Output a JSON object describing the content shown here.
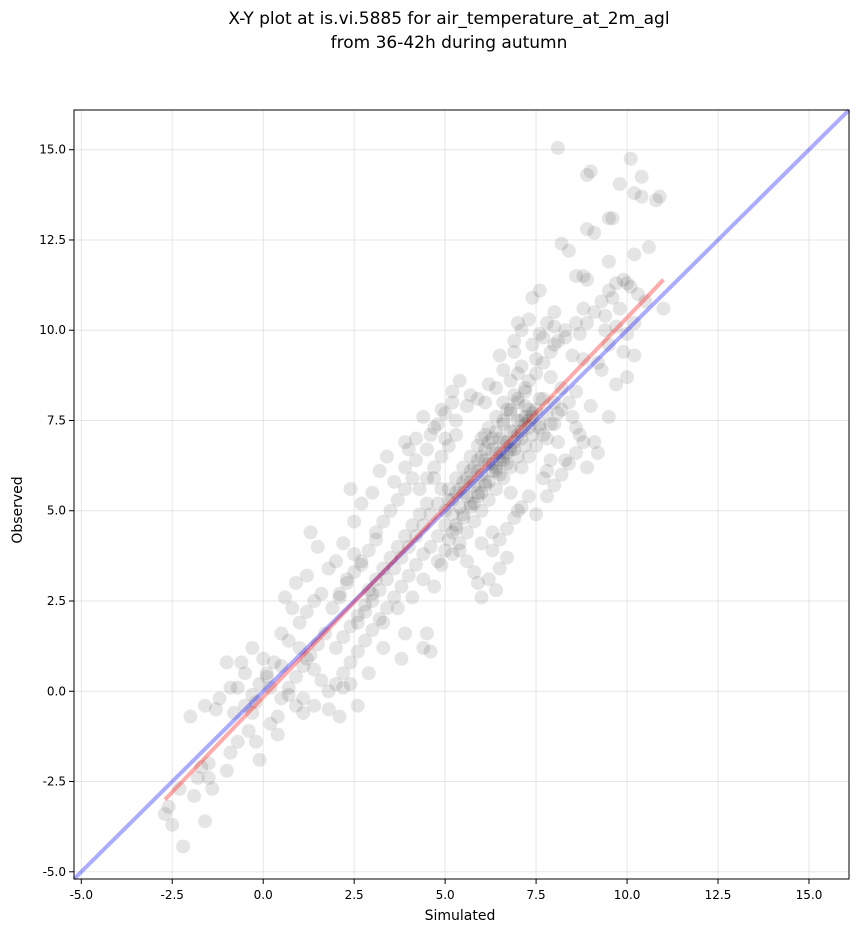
{
  "chart_data": {
    "type": "scatter",
    "title_line1": "X-Y plot at is.vi.5885 for air_temperature_at_2m_agl",
    "title_line2": "from 36-42h during autumn",
    "xlabel": "Simulated",
    "ylabel": "Observed",
    "xlim": [
      -5.2,
      16.1
    ],
    "ylim": [
      -5.2,
      16.1
    ],
    "xticks": [
      -5.0,
      -2.5,
      0.0,
      2.5,
      5.0,
      7.5,
      10.0,
      12.5,
      15.0
    ],
    "xtick_labels": [
      "-5.0",
      "-2.5",
      "0.0",
      "2.5",
      "5.0",
      "7.5",
      "10.0",
      "12.5",
      "15.0"
    ],
    "yticks": [
      -5.0,
      -2.5,
      0.0,
      2.5,
      5.0,
      7.5,
      10.0,
      12.5,
      15.0
    ],
    "ytick_labels": [
      "-5.0",
      "-2.5",
      "0.0",
      "2.5",
      "5.0",
      "7.5",
      "10.0",
      "12.5",
      "15.0"
    ],
    "grid": true,
    "point_color": "#000000",
    "point_alpha": 0.1,
    "one_to_one_line": {
      "x": [
        -5.2,
        16.1
      ],
      "y": [
        -5.2,
        16.1
      ],
      "color": "#0000ff",
      "alpha": 0.33
    },
    "fit_line": {
      "x": [
        -2.7,
        11.0
      ],
      "y": [
        -3.0,
        11.4
      ],
      "color": "#ff0000",
      "alpha": 0.33
    },
    "points": [
      [
        8.1,
        15.05
      ],
      [
        9.0,
        14.4
      ],
      [
        8.9,
        14.3
      ],
      [
        10.1,
        14.75
      ],
      [
        9.8,
        14.05
      ],
      [
        10.4,
        14.25
      ],
      [
        10.2,
        13.8
      ],
      [
        10.9,
        13.7
      ],
      [
        10.8,
        13.6
      ],
      [
        10.4,
        13.7
      ],
      [
        9.6,
        13.1
      ],
      [
        9.5,
        13.1
      ],
      [
        8.9,
        12.8
      ],
      [
        9.1,
        12.7
      ],
      [
        8.2,
        12.4
      ],
      [
        8.4,
        12.2
      ],
      [
        10.2,
        12.1
      ],
      [
        10.6,
        12.3
      ],
      [
        9.5,
        11.9
      ],
      [
        8.6,
        11.5
      ],
      [
        8.9,
        11.4
      ],
      [
        9.9,
        11.4
      ],
      [
        10.1,
        11.2
      ],
      [
        8.8,
        11.5
      ],
      [
        11.0,
        10.6
      ],
      [
        9.4,
        10.4
      ],
      [
        8.8,
        10.6
      ],
      [
        8.0,
        10.5
      ],
      [
        7.4,
        10.9
      ],
      [
        7.6,
        11.1
      ],
      [
        8.6,
        10.2
      ],
      [
        7.3,
        10.3
      ],
      [
        9.7,
        10.1
      ],
      [
        10.0,
        9.9
      ],
      [
        10.2,
        10.2
      ],
      [
        8.3,
        9.8
      ],
      [
        7.0,
        10.2
      ],
      [
        9.5,
        9.6
      ],
      [
        9.9,
        9.4
      ],
      [
        10.2,
        9.3
      ],
      [
        9.2,
        9.1
      ],
      [
        10.0,
        8.7
      ],
      [
        9.7,
        8.5
      ],
      [
        6.5,
        9.3
      ],
      [
        6.4,
        8.4
      ],
      [
        5.4,
        8.6
      ],
      [
        5.2,
        8.3
      ],
      [
        4.9,
        7.8
      ],
      [
        4.7,
        7.3
      ],
      [
        4.4,
        7.6
      ],
      [
        3.9,
        6.9
      ],
      [
        5.7,
        8.2
      ],
      [
        6.1,
        8.0
      ],
      [
        8.8,
        9.2
      ],
      [
        9.3,
        8.9
      ],
      [
        9.0,
        7.9
      ],
      [
        9.5,
        7.6
      ],
      [
        8.6,
        7.3
      ],
      [
        9.1,
        6.9
      ],
      [
        9.2,
        6.6
      ],
      [
        8.9,
        6.2
      ],
      [
        8.7,
        7.1
      ],
      [
        8.3,
        6.4
      ],
      [
        7.9,
        6.4
      ],
      [
        7.7,
        5.9
      ],
      [
        7.8,
        5.4
      ],
      [
        7.5,
        4.9
      ],
      [
        7.0,
        5.0
      ],
      [
        6.8,
        5.5
      ],
      [
        6.3,
        4.4
      ],
      [
        6.0,
        4.1
      ],
      [
        6.5,
        3.4
      ],
      [
        6.2,
        3.1
      ],
      [
        6.4,
        2.8
      ],
      [
        6.0,
        2.6
      ],
      [
        5.9,
        3.0
      ],
      [
        6.7,
        3.7
      ],
      [
        4.9,
        3.5
      ],
      [
        4.4,
        3.1
      ],
      [
        4.1,
        2.6
      ],
      [
        3.7,
        2.3
      ],
      [
        4.7,
        2.9
      ],
      [
        3.3,
        1.9
      ],
      [
        3.9,
        1.6
      ],
      [
        4.5,
        1.6
      ],
      [
        4.6,
        1.1
      ],
      [
        4.4,
        1.2
      ],
      [
        3.8,
        0.9
      ],
      [
        3.3,
        1.2
      ],
      [
        2.9,
        0.5
      ],
      [
        2.4,
        0.2
      ],
      [
        2.2,
        0.1
      ],
      [
        2.6,
        -0.4
      ],
      [
        2.1,
        -0.7
      ],
      [
        1.8,
        -0.5
      ],
      [
        1.4,
        -0.4
      ],
      [
        1.1,
        -0.6
      ],
      [
        1.1,
        -0.2
      ],
      [
        0.7,
        -0.1
      ],
      [
        0.9,
        -0.4
      ],
      [
        0.4,
        -0.7
      ],
      [
        0.2,
        0.1
      ],
      [
        -0.3,
        -0.6
      ],
      [
        -0.4,
        -1.1
      ],
      [
        -0.7,
        -1.4
      ],
      [
        -0.9,
        -1.7
      ],
      [
        -0.2,
        -1.4
      ],
      [
        -0.1,
        -1.9
      ],
      [
        -1.0,
        -2.2
      ],
      [
        -1.5,
        -2.0
      ],
      [
        -1.5,
        -2.4
      ],
      [
        -1.7,
        -2.1
      ],
      [
        -1.8,
        -2.4
      ],
      [
        -1.9,
        -2.9
      ],
      [
        -2.3,
        -2.7
      ],
      [
        -2.6,
        -3.2
      ],
      [
        -2.7,
        -3.4
      ],
      [
        -2.5,
        -3.7
      ],
      [
        -2.2,
        -4.3
      ],
      [
        -1.6,
        -3.6
      ],
      [
        -1.4,
        -2.7
      ],
      [
        -2.0,
        -0.7
      ],
      [
        -1.6,
        -0.4
      ],
      [
        -1.3,
        -0.5
      ],
      [
        -0.8,
        -0.6
      ],
      [
        -1.0,
        0.8
      ],
      [
        -0.7,
        0.1
      ],
      [
        -0.5,
        0.5
      ],
      [
        -0.3,
        1.2
      ],
      [
        0.0,
        0.9
      ],
      [
        0.1,
        0.4
      ],
      [
        0.5,
        0.7
      ],
      [
        0.5,
        1.6
      ],
      [
        0.7,
        1.4
      ],
      [
        0.8,
        2.3
      ],
      [
        0.6,
        2.6
      ],
      [
        0.9,
        3.0
      ],
      [
        1.2,
        3.2
      ],
      [
        1.4,
        2.5
      ],
      [
        1.0,
        1.9
      ],
      [
        1.2,
        2.2
      ],
      [
        1.6,
        2.7
      ],
      [
        1.8,
        3.4
      ],
      [
        1.3,
        4.4
      ],
      [
        1.5,
        4.0
      ],
      [
        2.0,
        3.6
      ],
      [
        2.2,
        4.1
      ],
      [
        2.5,
        4.7
      ],
      [
        2.7,
        5.2
      ],
      [
        2.4,
        5.6
      ],
      [
        3.0,
        5.5
      ],
      [
        3.2,
        6.1
      ],
      [
        3.4,
        6.5
      ],
      [
        3.6,
        5.8
      ],
      [
        3.9,
        6.2
      ],
      [
        4.2,
        6.4
      ],
      [
        4.5,
        6.7
      ],
      [
        5.0,
        7.0
      ],
      [
        5.3,
        7.5
      ],
      [
        5.6,
        7.9
      ],
      [
        5.9,
        8.1
      ],
      [
        6.2,
        8.5
      ],
      [
        6.6,
        8.9
      ],
      [
        6.9,
        9.4
      ],
      [
        7.1,
        9.0
      ],
      [
        7.3,
        8.6
      ],
      [
        7.5,
        9.2
      ],
      [
        7.7,
        9.8
      ],
      [
        8.0,
        9.6
      ],
      [
        7.9,
        8.7
      ],
      [
        8.2,
        8.4
      ],
      [
        7.6,
        8.1
      ],
      [
        7.2,
        7.9
      ],
      [
        7.0,
        7.5
      ],
      [
        6.8,
        7.2
      ],
      [
        6.6,
        6.9
      ],
      [
        6.4,
        6.6
      ],
      [
        6.2,
        6.3
      ],
      [
        6.0,
        6.0
      ],
      [
        5.8,
        5.7
      ],
      [
        5.6,
        5.4
      ],
      [
        5.4,
        5.1
      ],
      [
        5.2,
        4.9
      ],
      [
        5.0,
        4.6
      ],
      [
        4.8,
        4.3
      ],
      [
        4.6,
        4.0
      ],
      [
        4.4,
        3.8
      ],
      [
        4.2,
        3.5
      ],
      [
        4.0,
        3.2
      ],
      [
        3.8,
        2.9
      ],
      [
        3.6,
        2.6
      ],
      [
        3.4,
        2.3
      ],
      [
        3.2,
        2.0
      ],
      [
        3.0,
        1.7
      ],
      [
        2.8,
        1.4
      ],
      [
        2.6,
        1.1
      ],
      [
        2.4,
        0.8
      ],
      [
        2.2,
        0.5
      ],
      [
        2.0,
        0.2
      ],
      [
        1.8,
        0.0
      ],
      [
        1.6,
        0.3
      ],
      [
        1.4,
        0.6
      ],
      [
        1.2,
        0.9
      ],
      [
        1.0,
        1.2
      ],
      [
        6.7,
        7.8
      ],
      [
        6.9,
        8.2
      ],
      [
        7.2,
        8.4
      ],
      [
        7.4,
        7.6
      ],
      [
        7.6,
        7.3
      ],
      [
        7.8,
        7.0
      ],
      [
        8.0,
        7.4
      ],
      [
        8.2,
        7.8
      ],
      [
        8.4,
        8.0
      ],
      [
        8.6,
        8.3
      ],
      [
        8.5,
        7.6
      ],
      [
        8.1,
        6.9
      ],
      [
        6.5,
        6.4
      ],
      [
        6.3,
        6.1
      ],
      [
        6.1,
        5.8
      ],
      [
        5.9,
        5.5
      ],
      [
        5.7,
        5.2
      ],
      [
        5.5,
        4.9
      ],
      [
        5.3,
        4.6
      ],
      [
        5.1,
        5.3
      ],
      [
        4.9,
        5.6
      ],
      [
        4.7,
        5.9
      ],
      [
        4.5,
        5.2
      ],
      [
        4.3,
        4.9
      ],
      [
        4.1,
        4.6
      ],
      [
        3.9,
        4.3
      ],
      [
        3.7,
        4.0
      ],
      [
        3.5,
        3.7
      ],
      [
        3.3,
        3.4
      ],
      [
        3.1,
        3.1
      ],
      [
        2.9,
        2.8
      ],
      [
        2.7,
        3.5
      ],
      [
        2.5,
        3.8
      ],
      [
        2.3,
        3.1
      ],
      [
        2.1,
        2.6
      ],
      [
        1.9,
        2.3
      ],
      [
        6.9,
        6.7
      ],
      [
        7.1,
        7.0
      ],
      [
        7.3,
        7.3
      ],
      [
        6.8,
        6.2
      ],
      [
        6.6,
        5.9
      ],
      [
        6.4,
        5.6
      ],
      [
        6.2,
        5.3
      ],
      [
        6.0,
        5.0
      ],
      [
        5.8,
        4.7
      ],
      [
        5.6,
        4.4
      ],
      [
        5.4,
        4.1
      ],
      [
        5.2,
        3.8
      ],
      [
        7.0,
        6.5
      ],
      [
        7.2,
        6.8
      ],
      [
        7.4,
        7.1
      ],
      [
        7.6,
        7.4
      ],
      [
        7.8,
        7.7
      ],
      [
        8.0,
        8.0
      ],
      [
        6.3,
        7.0
      ],
      [
        6.1,
        6.7
      ],
      [
        5.9,
        6.4
      ],
      [
        5.7,
        6.1
      ],
      [
        5.5,
        5.8
      ],
      [
        5.3,
        5.5
      ],
      [
        6.6,
        7.4
      ],
      [
        6.8,
        7.7
      ],
      [
        7.0,
        8.0
      ],
      [
        7.2,
        8.3
      ],
      [
        6.5,
        6.0
      ],
      [
        6.7,
        6.3
      ],
      [
        5.0,
        5.0
      ],
      [
        5.2,
        5.3
      ],
      [
        5.4,
        5.6
      ],
      [
        5.6,
        5.9
      ],
      [
        5.8,
        6.2
      ],
      [
        6.0,
        6.5
      ],
      [
        4.8,
        5.2
      ],
      [
        4.6,
        4.9
      ],
      [
        4.4,
        4.6
      ],
      [
        4.2,
        4.3
      ],
      [
        4.0,
        4.0
      ],
      [
        3.8,
        3.7
      ],
      [
        3.6,
        3.4
      ],
      [
        3.4,
        3.1
      ],
      [
        3.2,
        2.8
      ],
      [
        3.0,
        2.5
      ],
      [
        2.8,
        2.2
      ],
      [
        2.6,
        1.9
      ],
      [
        7.5,
        8.8
      ],
      [
        7.7,
        9.1
      ],
      [
        7.9,
        9.4
      ],
      [
        8.1,
        9.7
      ],
      [
        8.3,
        10.0
      ],
      [
        8.5,
        9.3
      ],
      [
        7.1,
        6.2
      ],
      [
        7.3,
        6.5
      ],
      [
        7.5,
        6.8
      ],
      [
        7.7,
        7.1
      ],
      [
        7.9,
        7.4
      ],
      [
        8.1,
        7.7
      ],
      [
        6.2,
        6.9
      ],
      [
        6.4,
        7.2
      ],
      [
        6.6,
        7.5
      ],
      [
        6.8,
        7.8
      ],
      [
        7.0,
        8.1
      ],
      [
        7.2,
        7.6
      ],
      [
        5.5,
        5.5
      ],
      [
        5.7,
        5.8
      ],
      [
        5.9,
        6.1
      ],
      [
        6.1,
        6.4
      ],
      [
        6.3,
        6.7
      ],
      [
        6.5,
        7.0
      ],
      [
        5.1,
        4.2
      ],
      [
        5.3,
        4.5
      ],
      [
        5.5,
        4.8
      ],
      [
        5.7,
        5.1
      ],
      [
        5.9,
        5.4
      ],
      [
        6.1,
        5.7
      ],
      [
        3.1,
        4.2
      ],
      [
        2.9,
        3.9
      ],
      [
        2.7,
        3.6
      ],
      [
        2.5,
        3.3
      ],
      [
        2.3,
        3.0
      ],
      [
        2.1,
        2.7
      ],
      [
        4.3,
        5.6
      ],
      [
        4.5,
        5.9
      ],
      [
        4.7,
        6.2
      ],
      [
        4.9,
        6.5
      ],
      [
        5.1,
        6.8
      ],
      [
        5.3,
        7.1
      ],
      [
        3.5,
        5.0
      ],
      [
        3.7,
        5.3
      ],
      [
        3.9,
        5.6
      ],
      [
        4.1,
        5.9
      ],
      [
        3.3,
        4.7
      ],
      [
        3.1,
        4.4
      ],
      [
        1.7,
        1.6
      ],
      [
        1.5,
        1.3
      ],
      [
        1.3,
        1.0
      ],
      [
        1.1,
        0.7
      ],
      [
        0.9,
        0.4
      ],
      [
        0.7,
        0.1
      ],
      [
        2.0,
        1.2
      ],
      [
        2.2,
        1.5
      ],
      [
        2.4,
        1.8
      ],
      [
        2.6,
        2.1
      ],
      [
        2.8,
        2.4
      ],
      [
        3.0,
        2.7
      ],
      [
        0.3,
        0.8
      ],
      [
        0.1,
        0.5
      ],
      [
        -0.1,
        0.2
      ],
      [
        -0.3,
        -0.1
      ],
      [
        -0.5,
        -0.4
      ],
      [
        0.5,
        -0.2
      ],
      [
        8.7,
        9.9
      ],
      [
        8.9,
        10.2
      ],
      [
        9.1,
        10.5
      ],
      [
        9.3,
        10.8
      ],
      [
        9.5,
        11.1
      ],
      [
        9.7,
        11.3
      ],
      [
        7.4,
        9.6
      ],
      [
        7.6,
        9.9
      ],
      [
        7.8,
        10.2
      ],
      [
        8.0,
        10.1
      ],
      [
        6.9,
        9.7
      ],
      [
        7.1,
        10.0
      ],
      [
        4.6,
        7.1
      ],
      [
        4.8,
        7.4
      ],
      [
        5.0,
        7.7
      ],
      [
        5.2,
        8.0
      ],
      [
        4.2,
        7.0
      ],
      [
        4.0,
        6.7
      ],
      [
        5.8,
        3.3
      ],
      [
        5.6,
        3.6
      ],
      [
        5.4,
        3.9
      ],
      [
        5.2,
        4.4
      ],
      [
        5.0,
        3.9
      ],
      [
        4.8,
        3.6
      ],
      [
        6.3,
        3.9
      ],
      [
        6.5,
        4.2
      ],
      [
        6.7,
        4.5
      ],
      [
        6.9,
        4.8
      ],
      [
        7.1,
        5.1
      ],
      [
        7.3,
        5.4
      ],
      [
        8.4,
        6.3
      ],
      [
        8.6,
        6.6
      ],
      [
        8.8,
        6.9
      ],
      [
        8.2,
        6.0
      ],
      [
        8.0,
        5.7
      ],
      [
        7.8,
        6.1
      ],
      [
        6.6,
        8.0
      ],
      [
        6.8,
        8.6
      ],
      [
        7.0,
        8.8
      ],
      [
        6.4,
        7.6
      ],
      [
        6.2,
        7.3
      ],
      [
        6.0,
        7.0
      ],
      [
        5.7,
        6.5
      ],
      [
        5.9,
        6.8
      ],
      [
        6.1,
        7.1
      ],
      [
        5.5,
        6.2
      ],
      [
        5.3,
        5.9
      ],
      [
        5.1,
        5.6
      ],
      [
        6.7,
        6.6
      ],
      [
        6.9,
        6.9
      ],
      [
        7.1,
        7.2
      ],
      [
        7.3,
        7.5
      ],
      [
        7.5,
        7.8
      ],
      [
        7.7,
        8.1
      ],
      [
        6.4,
        6.2
      ],
      [
        6.6,
        6.5
      ],
      [
        6.8,
        6.8
      ],
      [
        7.0,
        7.1
      ],
      [
        7.2,
        7.4
      ],
      [
        7.4,
        7.7
      ],
      [
        6.3,
        6.3
      ],
      [
        6.5,
        6.6
      ],
      [
        6.7,
        6.9
      ],
      [
        6.9,
        7.2
      ],
      [
        7.1,
        7.5
      ],
      [
        7.3,
        7.8
      ],
      [
        5.8,
        5.2
      ],
      [
        6.0,
        5.5
      ],
      [
        6.2,
        5.8
      ],
      [
        6.4,
        6.1
      ],
      [
        6.6,
        6.4
      ],
      [
        6.8,
        6.7
      ],
      [
        -0.6,
        0.8
      ],
      [
        -0.9,
        0.1
      ],
      [
        -1.2,
        -0.2
      ],
      [
        0.2,
        -0.9
      ],
      [
        0.4,
        -1.2
      ],
      [
        -0.2,
        -0.3
      ],
      [
        10.3,
        11.0
      ],
      [
        10.5,
        10.8
      ],
      [
        9.8,
        10.6
      ],
      [
        9.6,
        10.9
      ],
      [
        10.0,
        11.3
      ],
      [
        9.4,
        10.0
      ]
    ]
  }
}
